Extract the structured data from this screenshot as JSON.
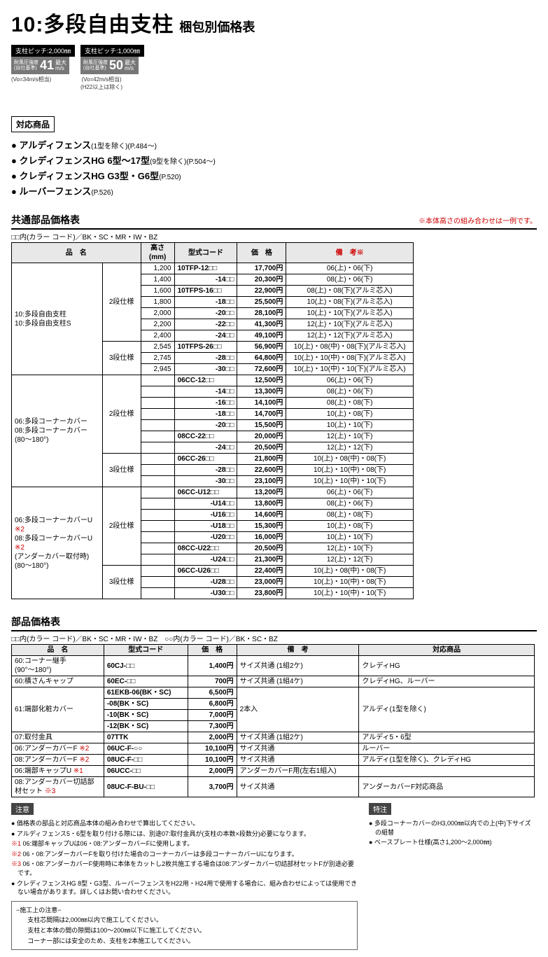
{
  "title": {
    "main": "10:多段自由支柱",
    "sub": "梱包別価格表"
  },
  "badges": [
    {
      "pitch": "支柱ピッチ:2,000㎜",
      "lbl": "耐風圧強度\n(自社基準)",
      "num": "41",
      "unit_top": "最大",
      "unit_bot": "m/s",
      "note": "(Vo=34m/s相当)"
    },
    {
      "pitch": "支柱ピッチ:1,000㎜",
      "lbl": "耐風圧強度\n(自社基準)",
      "num": "50",
      "unit_top": "最大",
      "unit_bot": "m/s",
      "note": "(Vo=42m/s相当)\n(H22以上は除く)"
    }
  ],
  "compat_title": "対応商品",
  "products": [
    {
      "bold": "アルディフェンス",
      "rest": "(1型を除く)(P.484～)"
    },
    {
      "bold": "クレディフェンスHG 6型～17型",
      "rest": "(9型を除く)(P.504～)"
    },
    {
      "bold": "クレディフェンスHG G3型・G6型",
      "rest": "(P.520)"
    },
    {
      "bold": "ルーバーフェンス",
      "rest": "(P.526)"
    }
  ],
  "t1_title": "共通部品価格表",
  "t1_note": "※本体高さの組み合わせは一例です。",
  "t1_color": "□□内(カラー コード)／BK・SC・MR・IW・BZ",
  "t1_head": [
    "品　名",
    "高さ(mm)",
    "型式コード",
    "価　格",
    "備　考※"
  ],
  "groups": [
    {
      "name": "10:多段自由支柱\n10:多段自由支柱S",
      "sub": [
        {
          "spec": "2段仕様",
          "rows": [
            {
              "h": "1,200",
              "code": "10TFP-12□□",
              "codeR": false,
              "price": "17,700円",
              "rem": "06(上)・06(下)"
            },
            {
              "h": "1,400",
              "code": "-14□□",
              "codeR": true,
              "price": "20,300円",
              "rem": "08(上)・06(下)"
            },
            {
              "h": "1,600",
              "code": "10TFPS-16□□",
              "codeR": false,
              "price": "22,900円",
              "rem": "08(上)・08(下)(アルミ芯入)"
            },
            {
              "h": "1,800",
              "code": "-18□□",
              "codeR": true,
              "price": "25,500円",
              "rem": "10(上)・08(下)(アルミ芯入)"
            },
            {
              "h": "2,000",
              "code": "-20□□",
              "codeR": true,
              "price": "28,100円",
              "rem": "10(上)・10(下)(アルミ芯入)"
            },
            {
              "h": "2,200",
              "code": "-22□□",
              "codeR": true,
              "price": "41,300円",
              "rem": "12(上)・10(下)(アルミ芯入)"
            },
            {
              "h": "2,400",
              "code": "-24□□",
              "codeR": true,
              "price": "49,100円",
              "rem": "12(上)・12(下)(アルミ芯入)"
            }
          ]
        },
        {
          "spec": "3段仕様",
          "rows": [
            {
              "h": "2,545",
              "code": "10TFPS-26□□",
              "codeR": false,
              "price": "56,900円",
              "rem": "10(上)・08(中)・08(下)(アルミ芯入)"
            },
            {
              "h": "2,745",
              "code": "-28□□",
              "codeR": true,
              "price": "64,800円",
              "rem": "10(上)・10(中)・08(下)(アルミ芯入)"
            },
            {
              "h": "2,945",
              "code": "-30□□",
              "codeR": true,
              "price": "72,600円",
              "rem": "10(上)・10(中)・10(下)(アルミ芯入)"
            }
          ]
        }
      ]
    },
    {
      "name": "06:多段コーナーカバー\n08:多段コーナーカバー\n(80～180°)",
      "sub": [
        {
          "spec": "2段仕様",
          "rows": [
            {
              "h": "",
              "code": "06CC-12□□",
              "codeR": false,
              "price": "12,500円",
              "rem": "06(上)・06(下)"
            },
            {
              "h": "",
              "code": "-14□□",
              "codeR": true,
              "price": "13,300円",
              "rem": "08(上)・06(下)"
            },
            {
              "h": "",
              "code": "-16□□",
              "codeR": true,
              "price": "14,100円",
              "rem": "08(上)・08(下)"
            },
            {
              "h": "",
              "code": "-18□□",
              "codeR": true,
              "price": "14,700円",
              "rem": "10(上)・08(下)"
            },
            {
              "h": "",
              "code": "-20□□",
              "codeR": true,
              "price": "15,500円",
              "rem": "10(上)・10(下)"
            },
            {
              "h": "",
              "code": "08CC-22□□",
              "codeR": false,
              "price": "20,000円",
              "rem": "12(上)・10(下)"
            },
            {
              "h": "",
              "code": "-24□□",
              "codeR": true,
              "price": "20,500円",
              "rem": "12(上)・12(下)"
            }
          ]
        },
        {
          "spec": "3段仕様",
          "rows": [
            {
              "h": "",
              "code": "06CC-26□□",
              "codeR": false,
              "price": "21,800円",
              "rem": "10(上)・08(中)・08(下)"
            },
            {
              "h": "",
              "code": "-28□□",
              "codeR": true,
              "price": "22,600円",
              "rem": "10(上)・10(中)・08(下)"
            },
            {
              "h": "",
              "code": "-30□□",
              "codeR": true,
              "price": "23,100円",
              "rem": "10(上)・10(中)・10(下)"
            }
          ]
        }
      ]
    },
    {
      "name_html": "06:多段コーナーカバーU <span class='red'>※2</span>\n08:多段コーナーカバーU <span class='red'>※2</span>\n(アンダーカバー取付時)\n(80～180°)",
      "sub": [
        {
          "spec": "2段仕様",
          "rows": [
            {
              "h": "",
              "code": "06CC-U12□□",
              "codeR": false,
              "price": "13,200円",
              "rem": "06(上)・06(下)"
            },
            {
              "h": "",
              "code": "-U14□□",
              "codeR": true,
              "price": "13,800円",
              "rem": "08(上)・06(下)"
            },
            {
              "h": "",
              "code": "-U16□□",
              "codeR": true,
              "price": "14,600円",
              "rem": "08(上)・08(下)"
            },
            {
              "h": "",
              "code": "-U18□□",
              "codeR": true,
              "price": "15,300円",
              "rem": "10(上)・08(下)"
            },
            {
              "h": "",
              "code": "-U20□□",
              "codeR": true,
              "price": "16,000円",
              "rem": "10(上)・10(下)"
            },
            {
              "h": "",
              "code": "08CC-U22□□",
              "codeR": false,
              "price": "20,500円",
              "rem": "12(上)・10(下)"
            },
            {
              "h": "",
              "code": "-U24□□",
              "codeR": true,
              "price": "21,300円",
              "rem": "12(上)・12(下)"
            }
          ]
        },
        {
          "spec": "3段仕様",
          "rows": [
            {
              "h": "",
              "code": "06CC-U26□□",
              "codeR": false,
              "price": "22,400円",
              "rem": "10(上)・08(中)・08(下)"
            },
            {
              "h": "",
              "code": "-U28□□",
              "codeR": true,
              "price": "23,000円",
              "rem": "10(上)・10(中)・08(下)"
            },
            {
              "h": "",
              "code": "-U30□□",
              "codeR": true,
              "price": "23,800円",
              "rem": "10(上)・10(中)・10(下)"
            }
          ]
        }
      ]
    }
  ],
  "t2_title": "部品価格表",
  "t2_color": "□□内(カラー コード)／BK・SC・MR・IW・BZ　○○内(カラー コード)／BK・SC・BZ",
  "t2_head": [
    "品　名",
    "型式コード",
    "価　格",
    "備　考",
    "対応商品"
  ],
  "t2_groups": [
    {
      "name": "60:コーナー継手\n(90°～180°)",
      "rows": [
        {
          "code": "60CJ-□□",
          "price": "1,400円",
          "rem": "サイズ共通 (1組2ケ)",
          "target": "クレディHG"
        }
      ]
    },
    {
      "name": "60:横さんキャップ",
      "rows": [
        {
          "code": "60EC-□□",
          "price": "700円",
          "rem": "サイズ共通 (1組4ケ)",
          "target": "クレディHG、ルーバー"
        }
      ]
    },
    {
      "name": "61:端部化粧カバー",
      "rows": [
        {
          "code": "61EKB-06(BK・SC)",
          "price": "6,500円",
          "rem": "2本入",
          "remSpan": 4,
          "target": "アルディ(1型を除く)",
          "targetSpan": 4
        },
        {
          "code": "-08(BK・SC)",
          "price": "6,800円"
        },
        {
          "code": "-10(BK・SC)",
          "price": "7,000円"
        },
        {
          "code": "-12(BK・SC)",
          "price": "7,300円"
        }
      ]
    },
    {
      "name": "07:取付金具",
      "rows": [
        {
          "code": "07TTK",
          "price": "2,000円",
          "rem": "サイズ共通 (1組2ケ)",
          "target": "アルディ5・6型"
        }
      ]
    },
    {
      "name_html": "06:アンダーカバーF <span class='red'>※2</span>",
      "rows": [
        {
          "code": "06UC-F-○○",
          "price": "10,100円",
          "rem": "サイズ共通",
          "target": "ルーバー"
        }
      ]
    },
    {
      "name_html": "08:アンダーカバーF <span class='red'>※2</span>",
      "rows": [
        {
          "code": "08UC-F-□□",
          "price": "10,100円",
          "rem": "サイズ共通",
          "target": "アルディ(1型を除く)、クレディHG"
        }
      ]
    },
    {
      "name_html": "06:端部キャップU <span class='red'>※1</span>",
      "rows": [
        {
          "code": "06UCC-□□",
          "price": "2,000円",
          "rem": "アンダーカバーF用(左右1組入)",
          "target": ""
        }
      ]
    },
    {
      "name_html": "08:アンダーカバー切詰部材セット <span class='red'>※3</span>",
      "rows": [
        {
          "code": "08UC-F-BU-□□",
          "price": "3,700円",
          "rem": "サイズ共通",
          "target": "アンダーカバーF対応商品"
        }
      ]
    }
  ],
  "notes_title": "注意",
  "notes": [
    "● 価格表の部品と対応商品本体の組み合わせで算出してください。",
    "● アルディフェンス5・6型を取り付ける際には、別途07:取付金具が(支柱の本数×段数分)必要になります。",
    "※1 06:端部キャップUは06・08:アンダーカバーFに使用します。",
    "※2 06・08:アンダーカバーFを取り付けた場合のコーナーカバーは多段コーナーカバーUになります。",
    "※3 06・08:アンダーカバーF使用時に本体をカットし2枚共施工する場合は08:アンダーカバー切詰部材セットFが別途必要です。",
    "● クレディフェンスHG 8型・G3型、ルーバーフェンスをH22用・H24用で使用する場合に、組み合わせによっては使用できない場合があります。詳しくはお問い合わせください。"
  ],
  "notes_box": [
    "−施工上の注意−",
    "支柱芯間隔は2,000㎜以内で施工してください。",
    "支柱と本体の間の隙間は100～200㎜以下に施工してください。",
    "コーナー部には安全のため、支柱を2本施工してください。"
  ],
  "special_title": "特注",
  "special": [
    "● 多段コーナーカバーのH3,000㎜以内での上(中)下サイズの組替",
    "● ベースプレート仕様(高さ1,200～2,000㎜)"
  ]
}
